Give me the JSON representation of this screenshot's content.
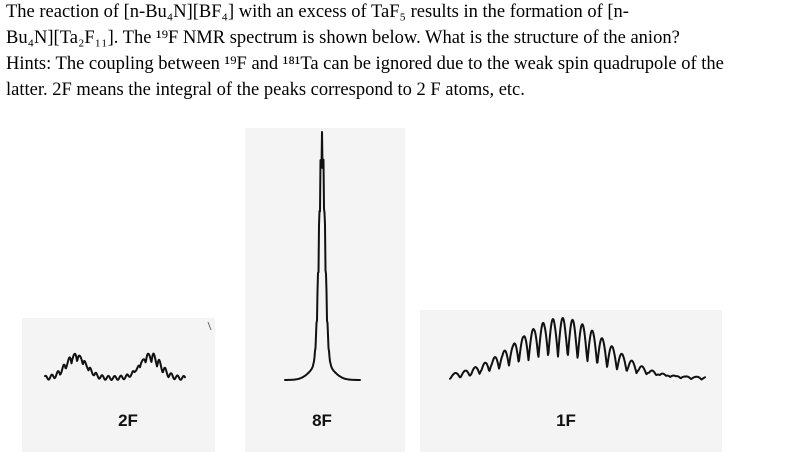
{
  "question": {
    "lines": [
      "The reaction of [n-Bu₄N][BF₄] with an excess of TaF₅ results in the formation of [n-",
      "Bu₄N][Ta₂F₁₁]. The ¹⁹F NMR spectrum is shown below. What is the structure of the anion?",
      "Hints: The coupling between ¹⁹F and ¹⁸¹Ta can be ignored due to the weak spin quadrupole of the",
      "latter. 2F means the integral of the peaks correspond to 2 F atoms, etc."
    ]
  },
  "spectra": [
    {
      "label": "2F"
    },
    {
      "label": "8F"
    },
    {
      "label": "1F"
    }
  ]
}
